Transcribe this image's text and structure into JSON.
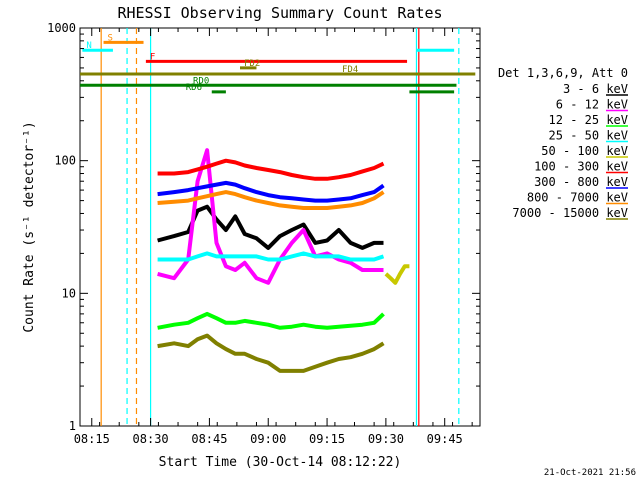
{
  "chart_data": {
    "type": "line",
    "title": "RHESSI Observing Summary Count Rates",
    "xlabel": "Start Time (30-Oct-14 08:12:22)",
    "ylabel": "Count Rate (s⁻¹ detector⁻¹)",
    "yscale": "log",
    "xlim": [
      8.2,
      9.9
    ],
    "ylim": [
      1,
      1000
    ],
    "x_ticks": [
      {
        "v": 8.25,
        "label": "08:15"
      },
      {
        "v": 8.5,
        "label": "08:30"
      },
      {
        "v": 8.75,
        "label": "08:45"
      },
      {
        "v": 9.0,
        "label": "09:00"
      },
      {
        "v": 9.25,
        "label": "09:15"
      },
      {
        "v": 9.5,
        "label": "09:30"
      },
      {
        "v": 9.75,
        "label": "09:45"
      }
    ],
    "y_ticks": [
      {
        "v": 1,
        "label": "1"
      },
      {
        "v": 10,
        "label": "10"
      },
      {
        "v": 100,
        "label": "100"
      },
      {
        "v": 1000,
        "label": "1000"
      }
    ],
    "legend_title": "Det 1,3,6,9, Att 0",
    "series": [
      {
        "name": "3 - 6 keV",
        "color": "#000000",
        "x": [
          8.53,
          8.6,
          8.66,
          8.7,
          8.74,
          8.78,
          8.82,
          8.86,
          8.9,
          8.95,
          9.0,
          9.05,
          9.1,
          9.15,
          9.2,
          9.25,
          9.3,
          9.35,
          9.4,
          9.45,
          9.49
        ],
        "y": [
          25,
          27,
          29,
          42,
          45,
          36,
          30,
          38,
          28,
          26,
          22,
          27,
          30,
          33,
          24,
          25,
          30,
          24,
          22,
          24,
          24
        ]
      },
      {
        "name": "6 - 12 keV",
        "color": "#ff00ff",
        "x": [
          8.53,
          8.6,
          8.66,
          8.7,
          8.74,
          8.78,
          8.82,
          8.86,
          8.9,
          8.95,
          9.0,
          9.05,
          9.1,
          9.15,
          9.2,
          9.25,
          9.3,
          9.35,
          9.4,
          9.45,
          9.49
        ],
        "y": [
          14,
          13,
          18,
          70,
          120,
          24,
          16,
          15,
          17,
          13,
          12,
          18,
          24,
          30,
          19,
          20,
          18,
          17,
          15,
          15,
          15
        ]
      },
      {
        "name": "12 - 25 keV",
        "color": "#00ff00",
        "x": [
          8.53,
          8.6,
          8.66,
          8.7,
          8.74,
          8.78,
          8.82,
          8.86,
          8.9,
          8.95,
          9.0,
          9.05,
          9.1,
          9.15,
          9.2,
          9.25,
          9.3,
          9.35,
          9.4,
          9.45,
          9.49
        ],
        "y": [
          5.5,
          5.8,
          6.0,
          6.5,
          7.0,
          6.5,
          6.0,
          6.0,
          6.2,
          6.0,
          5.8,
          5.5,
          5.6,
          5.8,
          5.6,
          5.5,
          5.6,
          5.7,
          5.8,
          6.0,
          7.0
        ]
      },
      {
        "name": "25 - 50 keV",
        "color": "#00ffff",
        "x": [
          8.53,
          8.6,
          8.66,
          8.7,
          8.74,
          8.78,
          8.82,
          8.86,
          8.9,
          8.95,
          9.0,
          9.05,
          9.1,
          9.15,
          9.2,
          9.25,
          9.3,
          9.35,
          9.4,
          9.45,
          9.49
        ],
        "y": [
          18,
          18,
          18,
          19,
          20,
          19,
          19,
          19,
          19,
          19,
          18,
          18,
          19,
          20,
          19,
          19,
          19,
          18,
          18,
          18,
          19
        ]
      },
      {
        "name": "50 - 100 keV",
        "color": "#c8c800",
        "x": [
          9.5,
          9.52,
          9.54,
          9.56,
          9.58,
          9.6
        ],
        "y": [
          14,
          13,
          12,
          14,
          16,
          16
        ]
      },
      {
        "name": "100 - 300 keV",
        "color": "#ff0000",
        "x": [
          8.53,
          8.6,
          8.66,
          8.7,
          8.74,
          8.78,
          8.82,
          8.86,
          8.9,
          8.95,
          9.0,
          9.05,
          9.1,
          9.15,
          9.2,
          9.25,
          9.3,
          9.35,
          9.4,
          9.45,
          9.49
        ],
        "y": [
          80,
          80,
          82,
          86,
          90,
          95,
          100,
          97,
          92,
          88,
          85,
          82,
          78,
          75,
          73,
          73,
          75,
          78,
          83,
          88,
          95
        ]
      },
      {
        "name": "300 - 800 keV",
        "color": "#0000ff",
        "x": [
          8.53,
          8.6,
          8.66,
          8.7,
          8.74,
          8.78,
          8.82,
          8.86,
          8.9,
          8.95,
          9.0,
          9.05,
          9.1,
          9.15,
          9.2,
          9.25,
          9.3,
          9.35,
          9.4,
          9.45,
          9.49
        ],
        "y": [
          56,
          58,
          60,
          62,
          64,
          66,
          68,
          66,
          62,
          58,
          55,
          53,
          52,
          51,
          50,
          50,
          51,
          52,
          55,
          58,
          65
        ]
      },
      {
        "name": "800 - 7000 keV",
        "color": "#ff8c00",
        "x": [
          8.53,
          8.6,
          8.66,
          8.7,
          8.74,
          8.78,
          8.82,
          8.86,
          8.9,
          8.95,
          9.0,
          9.05,
          9.1,
          9.15,
          9.2,
          9.25,
          9.3,
          9.35,
          9.4,
          9.45,
          9.49
        ],
        "y": [
          48,
          49,
          50,
          52,
          54,
          56,
          58,
          56,
          53,
          50,
          48,
          46,
          45,
          44,
          44,
          44,
          45,
          46,
          48,
          52,
          58
        ]
      },
      {
        "name": "7000 - 15000 keV",
        "color": "#808000",
        "x": [
          8.53,
          8.6,
          8.66,
          8.7,
          8.74,
          8.78,
          8.82,
          8.86,
          8.9,
          8.95,
          9.0,
          9.05,
          9.1,
          9.15,
          9.2,
          9.25,
          9.3,
          9.35,
          9.4,
          9.45,
          9.49
        ],
        "y": [
          4.0,
          4.2,
          4.0,
          4.5,
          4.8,
          4.2,
          3.8,
          3.5,
          3.5,
          3.2,
          3.0,
          2.6,
          2.6,
          2.6,
          2.8,
          3.0,
          3.2,
          3.3,
          3.5,
          3.8,
          4.2
        ]
      }
    ],
    "flag_bars": [
      {
        "name": "S",
        "color": "#ff8c00",
        "x1": 8.3,
        "x2": 8.47,
        "y": 780
      },
      {
        "name": "N",
        "color": "#00ffff",
        "x1": 8.21,
        "x2": 8.34,
        "y": 680
      },
      {
        "name": "N",
        "color": "#00ffff",
        "x1": 9.63,
        "x2": 9.79,
        "y": 680
      },
      {
        "name": "F",
        "color": "#ff0000",
        "x1": 8.48,
        "x2": 9.59,
        "y": 560
      },
      {
        "name": "FD2",
        "color": "#808000",
        "x1": 8.88,
        "x2": 8.95,
        "y": 500
      },
      {
        "name": "FD4",
        "color": "#808000",
        "x1": 8.2,
        "x2": 9.88,
        "y": 450
      },
      {
        "name": "RD0",
        "color": "#008000",
        "x1": 8.2,
        "x2": 9.8,
        "y": 370
      },
      {
        "name": "RD6",
        "color": "#008000",
        "x1": 8.76,
        "x2": 8.82,
        "y": 330
      },
      {
        "name": "RD6",
        "color": "#008000",
        "x1": 9.6,
        "x2": 9.79,
        "y": 330
      }
    ],
    "vlines": [
      {
        "x": 8.29,
        "color": "#ff8c00",
        "style": "solid"
      },
      {
        "x": 8.4,
        "color": "#00ffff",
        "style": "dashed"
      },
      {
        "x": 8.44,
        "color": "#ff8c00",
        "style": "dashed"
      },
      {
        "x": 8.5,
        "color": "#00ffff",
        "style": "solid"
      },
      {
        "x": 9.63,
        "color": "#00ffff",
        "style": "solid"
      },
      {
        "x": 9.64,
        "color": "#ff0000",
        "style": "solid"
      },
      {
        "x": 9.81,
        "color": "#00ffff",
        "style": "dashed"
      }
    ]
  },
  "footer": {
    "date": "21-Oct-2021 21:56"
  },
  "colors": {
    "axis": "#000000",
    "background": "#ffffff"
  }
}
